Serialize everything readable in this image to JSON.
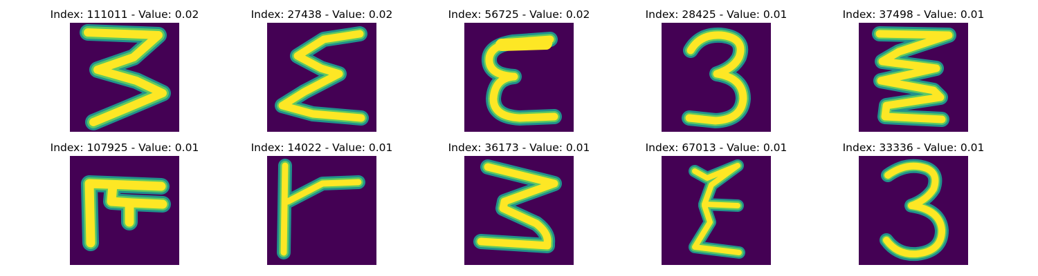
{
  "colors": {
    "background": "#440154",
    "stroke_edge": "#21918c",
    "stroke_mid": "#5ec962",
    "stroke_core": "#fde725"
  },
  "panels": [
    {
      "title": "Index: 111011 - Value: 0.02",
      "glyph": "wide-three-digit"
    },
    {
      "title": "Index: 27438 - Value: 0.02",
      "glyph": "sigma-like-digit"
    },
    {
      "title": "Index: 56725 - Value: 0.02",
      "glyph": "epsilon-like-digit"
    },
    {
      "title": "Index: 28425 - Value: 0.01",
      "glyph": "three-digit"
    },
    {
      "title": "Index: 37498 - Value: 0.01",
      "glyph": "double-zigzag-digit"
    },
    {
      "title": "Index: 107925 - Value: 0.01",
      "glyph": "blocky-glyph"
    },
    {
      "title": "Index: 14022 - Value: 0.01",
      "glyph": "y-like-glyph"
    },
    {
      "title": "Index: 36173 - Value: 0.01",
      "glyph": "three-digit"
    },
    {
      "title": "Index: 67013 - Value: 0.01",
      "glyph": "zeta-like-glyph"
    },
    {
      "title": "Index: 33336 - Value: 0.01",
      "glyph": "three-digit"
    }
  ]
}
